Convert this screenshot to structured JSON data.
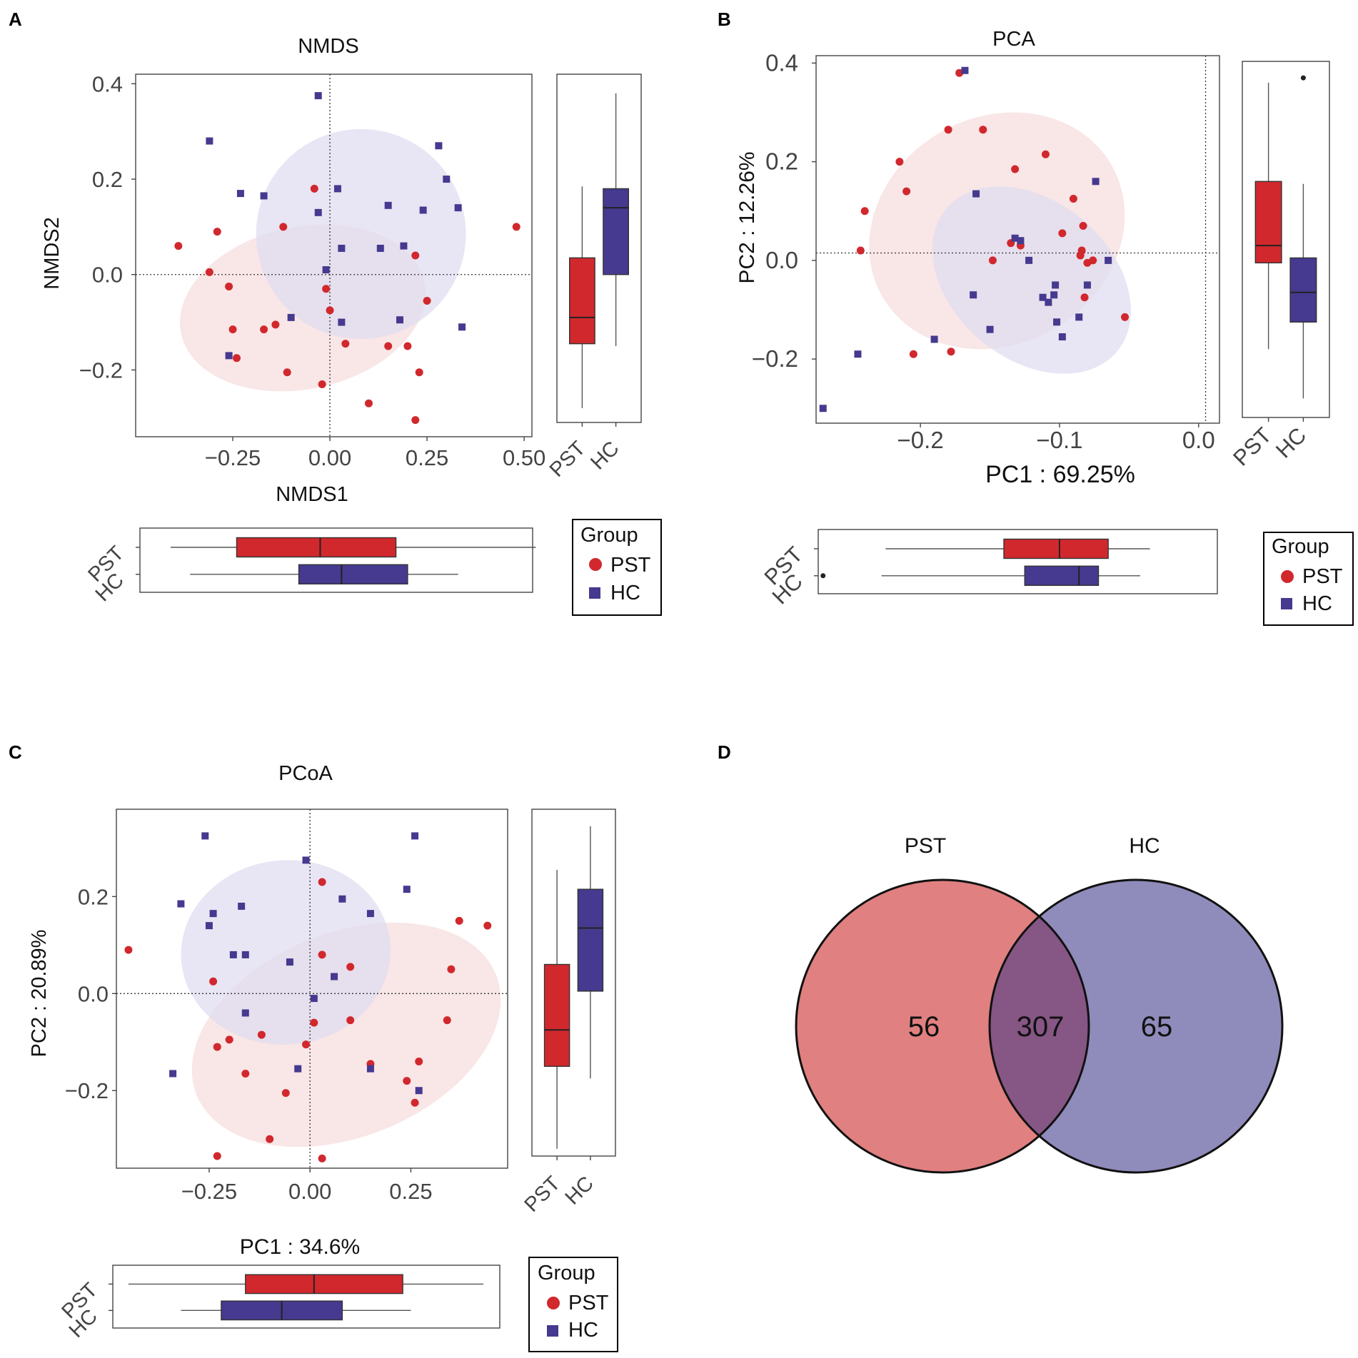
{
  "colors": {
    "pst": "#d1282d",
    "hc": "#453a8f",
    "pst_fill": "#f7dcdc",
    "hc_fill": "#dedbf0",
    "venn_pst": "#e08080",
    "venn_hc": "#8f8bbb",
    "venn_overlap": "#865684"
  },
  "group_names": {
    "pst": "PST",
    "hc": "HC"
  },
  "legend": {
    "title": "Group",
    "items": [
      "PST",
      "HC"
    ]
  },
  "chart_data": [
    {
      "type": "scatter",
      "panel_label": "A",
      "title": "NMDS",
      "xlabel": "NMDS1",
      "ylabel": "NMDS2",
      "xlim": [
        -0.5,
        0.52
      ],
      "ylim": [
        -0.34,
        0.42
      ],
      "xticks": [
        -0.25,
        0.0,
        0.25,
        0.5
      ],
      "xtick_labels": [
        "-0.25",
        "0.00",
        "0.25",
        "0.50"
      ],
      "yticks": [
        -0.2,
        0.0,
        0.2,
        0.4
      ],
      "ytick_labels": [
        "-0.2",
        "0.0",
        "0.2",
        "0.4"
      ],
      "ref_lines": {
        "x": 0.0,
        "y": 0.0
      },
      "ellipses": [
        {
          "group": "pst",
          "cx": -0.07,
          "cy": -0.07,
          "rx": 0.32,
          "ry": 0.17,
          "angle_deg": -12
        },
        {
          "group": "hc",
          "cx": 0.08,
          "cy": 0.085,
          "rx": 0.27,
          "ry": 0.22,
          "angle_deg": 5
        }
      ],
      "series": [
        {
          "name": "PST",
          "points": [
            [
              -0.39,
              0.06
            ],
            [
              -0.29,
              0.09
            ],
            [
              -0.31,
              0.005
            ],
            [
              -0.26,
              -0.025
            ],
            [
              -0.25,
              -0.115
            ],
            [
              -0.24,
              -0.175
            ],
            [
              -0.17,
              -0.115
            ],
            [
              -0.14,
              -0.105
            ],
            [
              -0.12,
              0.1
            ],
            [
              -0.11,
              -0.205
            ],
            [
              -0.04,
              0.18
            ],
            [
              -0.02,
              -0.23
            ],
            [
              -0.01,
              -0.03
            ],
            [
              0.0,
              -0.075
            ],
            [
              0.04,
              -0.145
            ],
            [
              0.1,
              -0.27
            ],
            [
              0.15,
              -0.15
            ],
            [
              0.2,
              -0.15
            ],
            [
              0.22,
              0.04
            ],
            [
              0.23,
              -0.205
            ],
            [
              0.25,
              -0.055
            ],
            [
              0.22,
              -0.305
            ],
            [
              0.48,
              0.1
            ]
          ]
        },
        {
          "name": "HC",
          "points": [
            [
              -0.31,
              0.28
            ],
            [
              -0.26,
              -0.17
            ],
            [
              -0.23,
              0.17
            ],
            [
              -0.17,
              0.165
            ],
            [
              -0.1,
              -0.09
            ],
            [
              -0.03,
              0.13
            ],
            [
              -0.03,
              0.375
            ],
            [
              -0.01,
              0.01
            ],
            [
              0.02,
              0.18
            ],
            [
              0.03,
              -0.1
            ],
            [
              0.03,
              0.055
            ],
            [
              0.13,
              0.055
            ],
            [
              0.15,
              0.145
            ],
            [
              0.18,
              -0.095
            ],
            [
              0.19,
              0.06
            ],
            [
              0.24,
              0.135
            ],
            [
              0.28,
              0.27
            ],
            [
              0.3,
              0.2
            ],
            [
              0.33,
              0.14
            ],
            [
              0.34,
              -0.11
            ]
          ]
        }
      ],
      "side_box": {
        "groups": [
          "PST",
          "HC"
        ],
        "PST": {
          "min": -0.28,
          "q1": -0.145,
          "median": -0.09,
          "q3": 0.035,
          "max": 0.185
        },
        "HC": {
          "min": -0.15,
          "q1": 0.0,
          "median": 0.14,
          "q3": 0.18,
          "max": 0.38
        }
      },
      "bottom_box": {
        "groups": [
          "PST",
          "HC"
        ],
        "PST": {
          "min": -0.41,
          "q1": -0.24,
          "median": -0.025,
          "q3": 0.17,
          "max": 0.53
        },
        "HC": {
          "min": -0.36,
          "q1": -0.08,
          "median": 0.03,
          "q3": 0.2,
          "max": 0.33
        }
      }
    },
    {
      "type": "scatter",
      "panel_label": "B",
      "title": "PCA",
      "xlabel": "PC1 : 69.25%",
      "ylabel": "PC2 : 12.26%",
      "xlim": [
        -0.275,
        0.015
      ],
      "ylim": [
        -0.33,
        0.415
      ],
      "xticks": [
        -0.2,
        -0.1,
        0.0
      ],
      "xtick_labels": [
        "-0.2",
        "-0.1",
        "0.0"
      ],
      "yticks": [
        -0.2,
        0.0,
        0.2,
        0.4
      ],
      "ytick_labels": [
        "-0.2",
        "0.0",
        "0.2",
        "0.4"
      ],
      "ref_lines": {
        "x": 0.005,
        "y": 0.015
      },
      "ellipses": [
        {
          "group": "pst",
          "cx": -0.145,
          "cy": 0.06,
          "rx": 0.095,
          "ry": 0.23,
          "angle_deg": -30
        },
        {
          "group": "hc",
          "cx": -0.12,
          "cy": -0.04,
          "rx": 0.08,
          "ry": 0.16,
          "angle_deg": 40
        }
      ],
      "series": [
        {
          "name": "PST",
          "points": [
            [
              -0.243,
              0.02
            ],
            [
              -0.24,
              0.1
            ],
            [
              -0.215,
              0.2
            ],
            [
              -0.21,
              0.14
            ],
            [
              -0.205,
              -0.19
            ],
            [
              -0.18,
              0.265
            ],
            [
              -0.178,
              -0.185
            ],
            [
              -0.172,
              0.38
            ],
            [
              -0.155,
              0.265
            ],
            [
              -0.148,
              0.0
            ],
            [
              -0.135,
              0.035
            ],
            [
              -0.132,
              0.185
            ],
            [
              -0.128,
              0.03
            ],
            [
              -0.11,
              0.215
            ],
            [
              -0.098,
              0.055
            ],
            [
              -0.09,
              0.125
            ],
            [
              -0.085,
              0.01
            ],
            [
              -0.084,
              0.02
            ],
            [
              -0.083,
              0.07
            ],
            [
              -0.082,
              -0.075
            ],
            [
              -0.08,
              -0.005
            ],
            [
              -0.076,
              0.0
            ],
            [
              -0.053,
              -0.115
            ]
          ]
        },
        {
          "name": "HC",
          "points": [
            [
              -0.27,
              -0.3
            ],
            [
              -0.245,
              -0.19
            ],
            [
              -0.19,
              -0.16
            ],
            [
              -0.168,
              0.385
            ],
            [
              -0.162,
              -0.07
            ],
            [
              -0.16,
              0.135
            ],
            [
              -0.15,
              -0.14
            ],
            [
              -0.132,
              0.045
            ],
            [
              -0.128,
              0.04
            ],
            [
              -0.122,
              0.0
            ],
            [
              -0.112,
              -0.075
            ],
            [
              -0.108,
              -0.085
            ],
            [
              -0.104,
              -0.07
            ],
            [
              -0.103,
              -0.05
            ],
            [
              -0.102,
              -0.125
            ],
            [
              -0.098,
              -0.155
            ],
            [
              -0.086,
              -0.115
            ],
            [
              -0.08,
              -0.05
            ],
            [
              -0.074,
              0.16
            ],
            [
              -0.065,
              0.0
            ]
          ]
        }
      ],
      "side_box": {
        "groups": [
          "PST",
          "HC"
        ],
        "PST": {
          "min": -0.18,
          "q1": -0.005,
          "median": 0.03,
          "q3": 0.16,
          "max": 0.36
        },
        "HC": {
          "min": -0.28,
          "q1": -0.125,
          "median": -0.065,
          "q3": 0.005,
          "max": 0.155,
          "outliers": [
            0.37
          ]
        }
      },
      "bottom_box": {
        "groups": [
          "PST",
          "HC"
        ],
        "PST": {
          "min": -0.225,
          "q1": -0.14,
          "median": -0.1,
          "q3": -0.065,
          "max": -0.035
        },
        "HC": {
          "min": -0.228,
          "q1": -0.125,
          "median": -0.086,
          "q3": -0.072,
          "max": -0.042,
          "outliers": [
            -0.27
          ]
        }
      }
    },
    {
      "type": "scatter",
      "panel_label": "C",
      "title": "PCoA",
      "xlabel": "PC1 : 34.6%",
      "ylabel": "PC2 : 20.89%",
      "xlim": [
        -0.48,
        0.49
      ],
      "ylim": [
        -0.36,
        0.38
      ],
      "xticks": [
        -0.25,
        0.0,
        0.25
      ],
      "xtick_labels": [
        "-0.25",
        "0.00",
        "0.25"
      ],
      "yticks": [
        -0.2,
        0.0,
        0.2
      ],
      "ytick_labels": [
        "-0.2",
        "0.0",
        "0.2"
      ],
      "ref_lines": {
        "x": 0.0,
        "y": 0.0
      },
      "ellipses": [
        {
          "group": "pst",
          "cx": 0.09,
          "cy": -0.085,
          "rx": 0.4,
          "ry": 0.21,
          "angle_deg": -22
        },
        {
          "group": "hc",
          "cx": -0.06,
          "cy": 0.085,
          "rx": 0.26,
          "ry": 0.19,
          "angle_deg": -5
        }
      ],
      "series": [
        {
          "name": "PST",
          "points": [
            [
              -0.45,
              0.09
            ],
            [
              -0.24,
              0.025
            ],
            [
              -0.23,
              -0.11
            ],
            [
              -0.2,
              -0.095
            ],
            [
              -0.16,
              -0.165
            ],
            [
              -0.12,
              -0.085
            ],
            [
              -0.1,
              -0.3
            ],
            [
              -0.06,
              -0.205
            ],
            [
              -0.01,
              -0.105
            ],
            [
              0.01,
              -0.06
            ],
            [
              0.03,
              0.23
            ],
            [
              0.03,
              0.08
            ],
            [
              0.1,
              0.055
            ],
            [
              0.1,
              -0.055
            ],
            [
              0.03,
              -0.34
            ],
            [
              -0.23,
              -0.335
            ],
            [
              0.15,
              -0.145
            ],
            [
              0.24,
              -0.18
            ],
            [
              0.26,
              -0.225
            ],
            [
              0.27,
              -0.14
            ],
            [
              0.34,
              -0.055
            ],
            [
              0.35,
              0.05
            ],
            [
              0.37,
              0.15
            ],
            [
              0.44,
              0.14
            ]
          ]
        },
        {
          "name": "HC",
          "points": [
            [
              -0.32,
              0.185
            ],
            [
              -0.26,
              0.325
            ],
            [
              -0.25,
              0.14
            ],
            [
              -0.24,
              0.165
            ],
            [
              -0.19,
              0.08
            ],
            [
              -0.17,
              0.18
            ],
            [
              -0.16,
              0.08
            ],
            [
              -0.16,
              -0.04
            ],
            [
              -0.05,
              0.065
            ],
            [
              -0.03,
              -0.155
            ],
            [
              -0.01,
              0.275
            ],
            [
              0.01,
              -0.01
            ],
            [
              0.06,
              0.035
            ],
            [
              0.08,
              0.195
            ],
            [
              0.15,
              0.165
            ],
            [
              0.15,
              -0.155
            ],
            [
              0.24,
              0.215
            ],
            [
              0.26,
              0.325
            ],
            [
              0.27,
              -0.2
            ],
            [
              -0.34,
              -0.165
            ]
          ]
        }
      ],
      "side_box": {
        "groups": [
          "PST",
          "HC"
        ],
        "PST": {
          "min": -0.32,
          "q1": -0.15,
          "median": -0.075,
          "q3": 0.06,
          "max": 0.255
        },
        "HC": {
          "min": -0.175,
          "q1": 0.005,
          "median": 0.135,
          "q3": 0.215,
          "max": 0.345
        }
      },
      "bottom_box": {
        "groups": [
          "PST",
          "HC"
        ],
        "PST": {
          "min": -0.45,
          "q1": -0.16,
          "median": 0.01,
          "q3": 0.23,
          "max": 0.43
        },
        "HC": {
          "min": -0.32,
          "q1": -0.22,
          "median": -0.07,
          "q3": 0.08,
          "max": 0.25
        }
      }
    },
    {
      "type": "venn",
      "panel_label": "D",
      "sets": [
        "PST",
        "HC"
      ],
      "only_pst": "56",
      "intersection": "307",
      "only_hc": "65"
    }
  ]
}
